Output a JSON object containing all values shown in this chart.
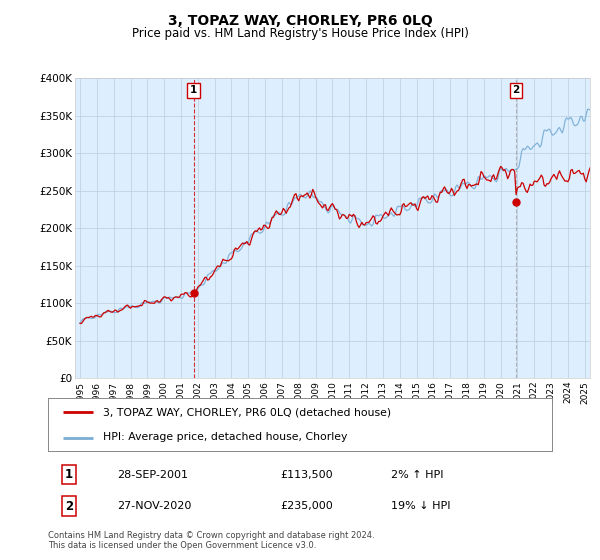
{
  "title": "3, TOPAZ WAY, CHORLEY, PR6 0LQ",
  "subtitle": "Price paid vs. HM Land Registry's House Price Index (HPI)",
  "ylabel_ticks": [
    "£0",
    "£50K",
    "£100K",
    "£150K",
    "£200K",
    "£250K",
    "£300K",
    "£350K",
    "£400K"
  ],
  "ytick_values": [
    0,
    50000,
    100000,
    150000,
    200000,
    250000,
    300000,
    350000,
    400000
  ],
  "ylim": [
    0,
    400000
  ],
  "xlim_start": 1994.7,
  "xlim_end": 2025.3,
  "legend_property": "3, TOPAZ WAY, CHORLEY, PR6 0LQ (detached house)",
  "legend_hpi": "HPI: Average price, detached house, Chorley",
  "sale1_label": "1",
  "sale1_date": "28-SEP-2001",
  "sale1_price": "£113,500",
  "sale1_hpi": "2% ↑ HPI",
  "sale1_x": 2001.75,
  "sale1_y": 113500,
  "sale2_label": "2",
  "sale2_date": "27-NOV-2020",
  "sale2_price": "£235,000",
  "sale2_hpi": "19% ↓ HPI",
  "sale2_x": 2020.9,
  "sale2_y": 235000,
  "footer": "Contains HM Land Registry data © Crown copyright and database right 2024.\nThis data is licensed under the Open Government Licence v3.0.",
  "line_property_color": "#cc0000",
  "line_hpi_color": "#7aadd4",
  "sale_marker_color": "#cc0000",
  "bg_color": "#ffffff",
  "plot_bg_color": "#ddeeff",
  "grid_color": "#bbccdd",
  "sale1_vline_color": "#cc0000",
  "sale2_vline_color": "#999999"
}
